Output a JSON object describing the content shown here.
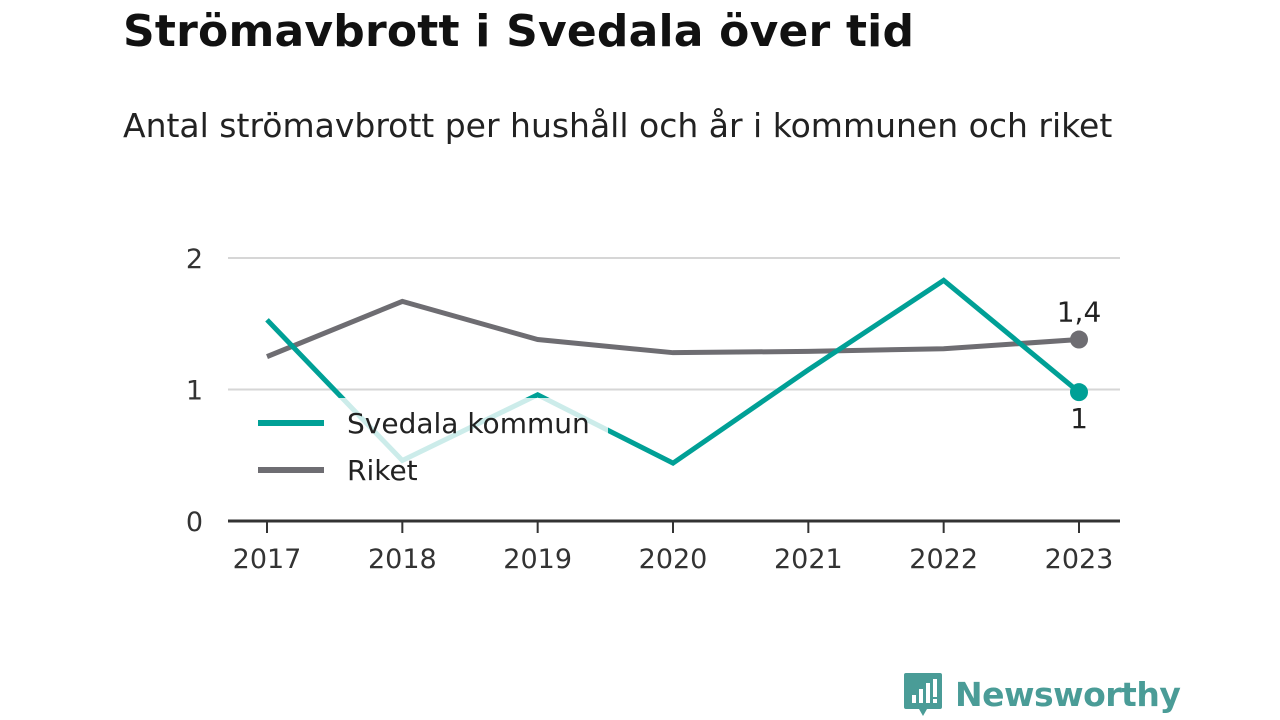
{
  "title": "Strömavbrott i Svedala över tid",
  "subtitle": "Antal strömavbrott per hushåll och år i kommunen och riket",
  "brand": {
    "name": "Newsworthy",
    "icon": "bar-chart-bubble-icon",
    "color": "#4a9c97"
  },
  "chart_data": {
    "type": "line",
    "x": [
      "2017",
      "2018",
      "2019",
      "2020",
      "2021",
      "2022",
      "2023"
    ],
    "yticks": [
      "0",
      "1",
      "2"
    ],
    "ylim": [
      0,
      2
    ],
    "grid": true,
    "legend_placement": "lower-left",
    "series": [
      {
        "name": "Svedala kommun",
        "color": "#00a096",
        "values": [
          1.53,
          0.46,
          0.96,
          0.44,
          1.15,
          1.83,
          0.98
        ],
        "end_label": "1"
      },
      {
        "name": "Riket",
        "color": "#6e6d72",
        "values": [
          1.25,
          1.67,
          1.38,
          1.28,
          1.29,
          1.31,
          1.38
        ],
        "end_label": "1,4"
      }
    ]
  }
}
